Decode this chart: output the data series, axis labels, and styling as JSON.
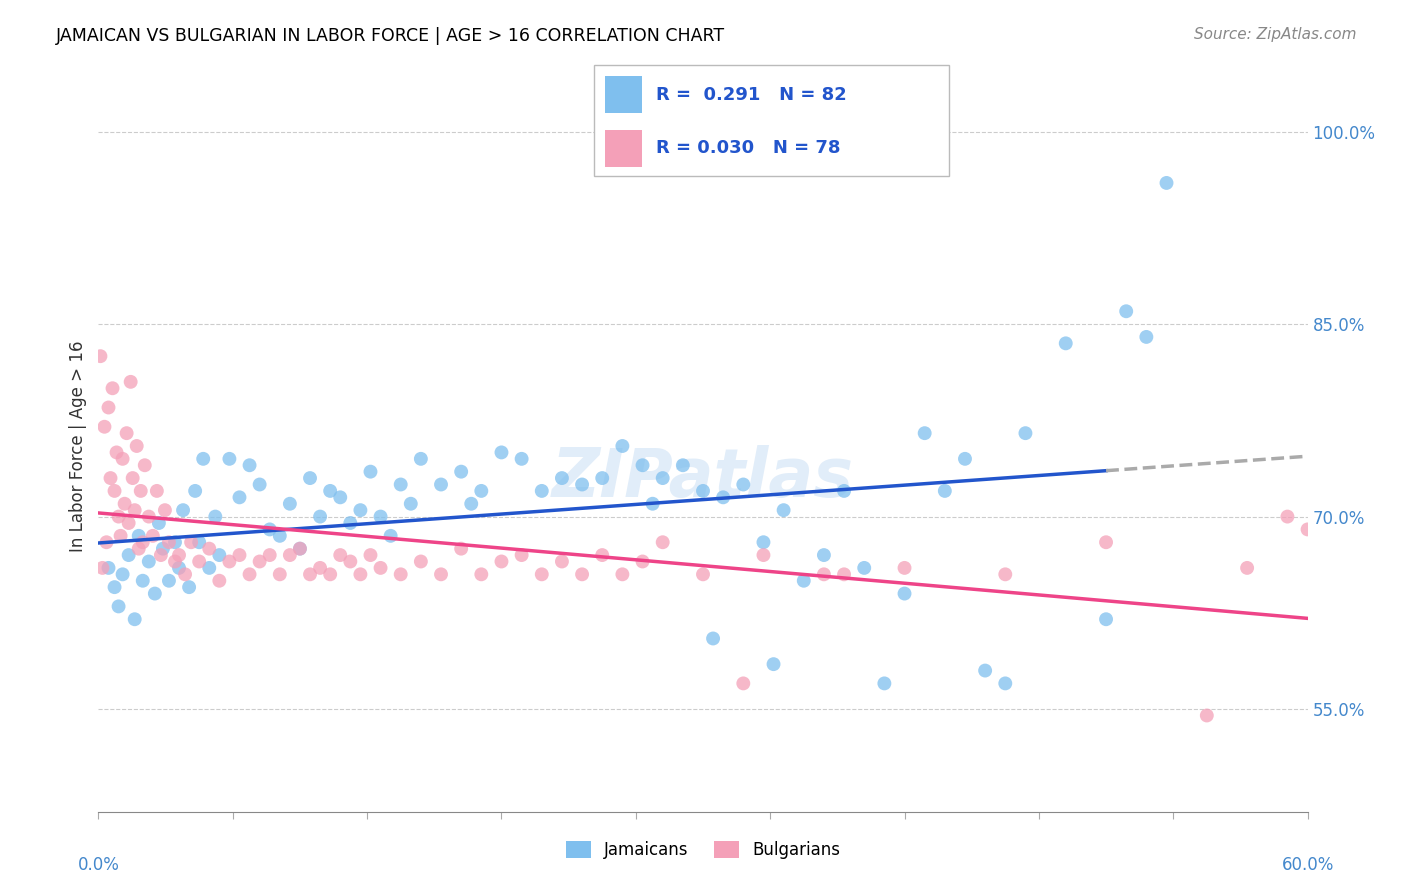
{
  "title": "JAMAICAN VS BULGARIAN IN LABOR FORCE | AGE > 16 CORRELATION CHART",
  "source_text": "Source: ZipAtlas.com",
  "ylabel": "In Labor Force | Age > 16",
  "xlim": [
    0.0,
    60.0
  ],
  "ylim": [
    47.0,
    104.0
  ],
  "yticks": [
    55.0,
    70.0,
    85.0,
    100.0
  ],
  "ytick_labels": [
    "55.0%",
    "70.0%",
    "85.0%",
    "100.0%"
  ],
  "jamaican_color": "#7fbfee",
  "bulgarian_color": "#f4a0b8",
  "trend_blue": "#2255cc",
  "trend_pink": "#ee4488",
  "trend_dashed_color": "#aaaaaa",
  "watermark": "ZIPatlas",
  "jamaican_x": [
    0.5,
    0.8,
    1.0,
    1.2,
    1.5,
    1.8,
    2.0,
    2.2,
    2.5,
    2.8,
    3.0,
    3.2,
    3.5,
    3.8,
    4.0,
    4.2,
    4.5,
    4.8,
    5.0,
    5.2,
    5.5,
    5.8,
    6.0,
    6.5,
    7.0,
    7.5,
    8.0,
    8.5,
    9.0,
    9.5,
    10.0,
    10.5,
    11.0,
    11.5,
    12.0,
    12.5,
    13.0,
    13.5,
    14.0,
    14.5,
    15.0,
    15.5,
    16.0,
    17.0,
    18.0,
    18.5,
    19.0,
    20.0,
    21.0,
    22.0,
    23.0,
    24.0,
    25.0,
    26.0,
    27.0,
    28.0,
    29.0,
    30.0,
    31.0,
    32.0,
    33.0,
    34.0,
    35.0,
    37.0,
    38.0,
    40.0,
    42.0,
    43.0,
    44.0,
    46.0,
    50.0,
    53.0,
    27.5,
    30.5,
    33.5,
    36.0,
    39.0,
    41.0,
    45.0,
    48.0,
    51.0,
    52.0
  ],
  "jamaican_y": [
    66.0,
    64.5,
    63.0,
    65.5,
    67.0,
    62.0,
    68.5,
    65.0,
    66.5,
    64.0,
    69.5,
    67.5,
    65.0,
    68.0,
    66.0,
    70.5,
    64.5,
    72.0,
    68.0,
    74.5,
    66.0,
    70.0,
    67.0,
    74.5,
    71.5,
    74.0,
    72.5,
    69.0,
    68.5,
    71.0,
    67.5,
    73.0,
    70.0,
    72.0,
    71.5,
    69.5,
    70.5,
    73.5,
    70.0,
    68.5,
    72.5,
    71.0,
    74.5,
    72.5,
    73.5,
    71.0,
    72.0,
    75.0,
    74.5,
    72.0,
    73.0,
    72.5,
    73.0,
    75.5,
    74.0,
    73.0,
    74.0,
    72.0,
    71.5,
    72.5,
    68.0,
    70.5,
    65.0,
    72.0,
    66.0,
    64.0,
    72.0,
    74.5,
    58.0,
    76.5,
    62.0,
    96.0,
    71.0,
    60.5,
    58.5,
    67.0,
    57.0,
    76.5,
    57.0,
    83.5,
    86.0,
    84.0
  ],
  "bulgarian_x": [
    0.1,
    0.2,
    0.3,
    0.4,
    0.5,
    0.6,
    0.7,
    0.8,
    0.9,
    1.0,
    1.1,
    1.2,
    1.3,
    1.4,
    1.5,
    1.6,
    1.7,
    1.8,
    1.9,
    2.0,
    2.1,
    2.2,
    2.3,
    2.5,
    2.7,
    2.9,
    3.1,
    3.3,
    3.5,
    3.8,
    4.0,
    4.3,
    4.6,
    5.0,
    5.5,
    6.0,
    6.5,
    7.0,
    7.5,
    8.0,
    8.5,
    9.0,
    9.5,
    10.0,
    10.5,
    11.0,
    11.5,
    12.0,
    12.5,
    13.0,
    13.5,
    14.0,
    15.0,
    16.0,
    17.0,
    18.0,
    19.0,
    20.0,
    21.0,
    22.0,
    23.0,
    24.0,
    25.0,
    26.0,
    27.0,
    30.0,
    33.0,
    36.0,
    40.0,
    45.0,
    50.0,
    55.0,
    57.0,
    59.0,
    60.0,
    28.0,
    32.0,
    37.0
  ],
  "bulgarian_y": [
    82.5,
    66.0,
    77.0,
    68.0,
    78.5,
    73.0,
    80.0,
    72.0,
    75.0,
    70.0,
    68.5,
    74.5,
    71.0,
    76.5,
    69.5,
    80.5,
    73.0,
    70.5,
    75.5,
    67.5,
    72.0,
    68.0,
    74.0,
    70.0,
    68.5,
    72.0,
    67.0,
    70.5,
    68.0,
    66.5,
    67.0,
    65.5,
    68.0,
    66.5,
    67.5,
    65.0,
    66.5,
    67.0,
    65.5,
    66.5,
    67.0,
    65.5,
    67.0,
    67.5,
    65.5,
    66.0,
    65.5,
    67.0,
    66.5,
    65.5,
    67.0,
    66.0,
    65.5,
    66.5,
    65.5,
    67.5,
    65.5,
    66.5,
    67.0,
    65.5,
    66.5,
    65.5,
    67.0,
    65.5,
    66.5,
    65.5,
    67.0,
    65.5,
    66.0,
    65.5,
    68.0,
    54.5,
    66.0,
    70.0,
    69.0,
    68.0,
    57.0,
    65.5
  ]
}
